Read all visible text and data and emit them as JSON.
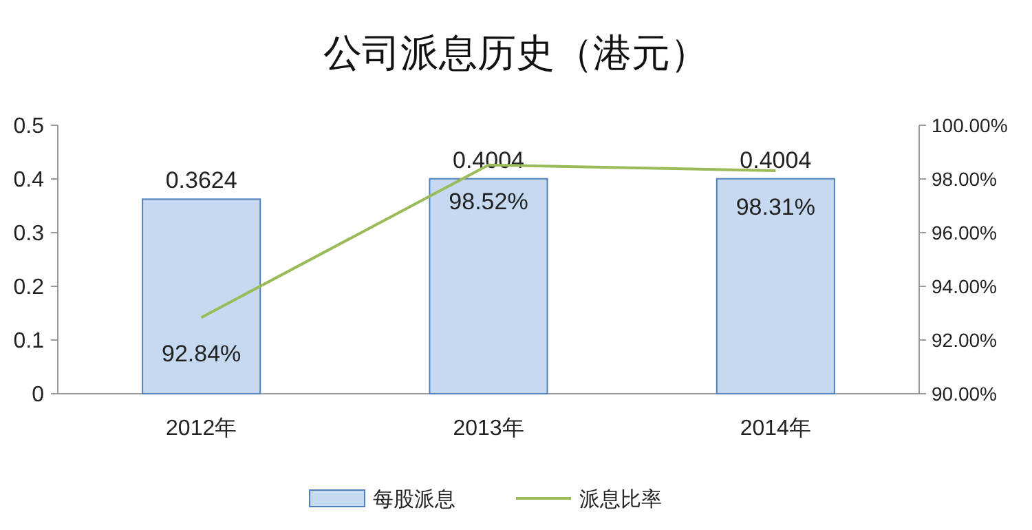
{
  "chart_data": {
    "type": "bar",
    "title": "公司派息历史（港元）",
    "categories": [
      "2012年",
      "2013年",
      "2014年"
    ],
    "series": [
      {
        "name": "每股派息",
        "color": "#c6d9f1",
        "values": [
          0.3624,
          0.4004,
          0.4004
        ],
        "value_labels": [
          "0.3624",
          "0.4004",
          "0.4004"
        ]
      },
      {
        "name": "派息比率",
        "type": "line",
        "axis": "y2",
        "color": "#9bbb59",
        "values": [
          92.84,
          98.52,
          98.31
        ],
        "value_labels": [
          "92.84%",
          "98.52%",
          "98.31%"
        ]
      }
    ],
    "ylim": [
      0,
      0.5
    ],
    "yticks": [
      0,
      0.1,
      0.2,
      0.3,
      0.4,
      0.5
    ],
    "y2lim": [
      90,
      100
    ],
    "y2ticks": [
      {
        "value": 90,
        "label": "90.00%"
      },
      {
        "value": 92,
        "label": "92.00%"
      },
      {
        "value": 94,
        "label": "94.00%"
      },
      {
        "value": 96,
        "label": "96.00%"
      },
      {
        "value": 98,
        "label": "98.00%"
      },
      {
        "value": 100,
        "label": "100.00%"
      }
    ],
    "legend": "bottom",
    "marker": "none"
  }
}
